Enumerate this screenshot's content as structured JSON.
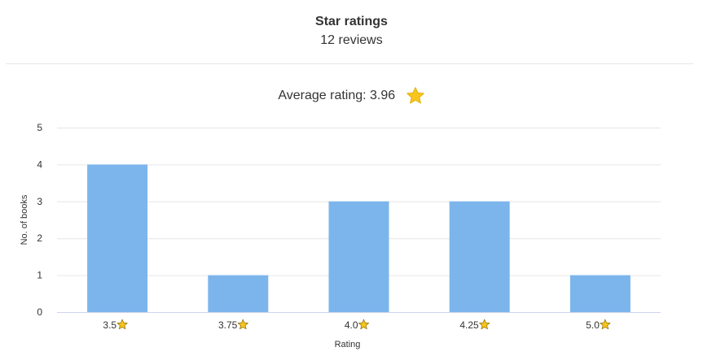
{
  "header": {
    "title": "Star ratings",
    "subtitle": "12 reviews"
  },
  "average": {
    "label": "Average rating:",
    "value": "3.96",
    "icon": "star-icon"
  },
  "colors": {
    "bar": "#7cb5ec",
    "star_fill": "#f7c51c",
    "star_stroke": "#8a6d00",
    "grid": "#e6e6e6"
  },
  "chart_data": {
    "type": "bar",
    "categories": [
      "3.5",
      "3.75",
      "4.0",
      "4.25",
      "5.0"
    ],
    "values": [
      4,
      1,
      3,
      3,
      1
    ],
    "xlabel": "Rating",
    "ylabel": "No. of books",
    "ylim": [
      0,
      5
    ],
    "yticks": [
      "0",
      "1",
      "2",
      "3",
      "4",
      "5"
    ],
    "grid": true,
    "legend": "none"
  }
}
